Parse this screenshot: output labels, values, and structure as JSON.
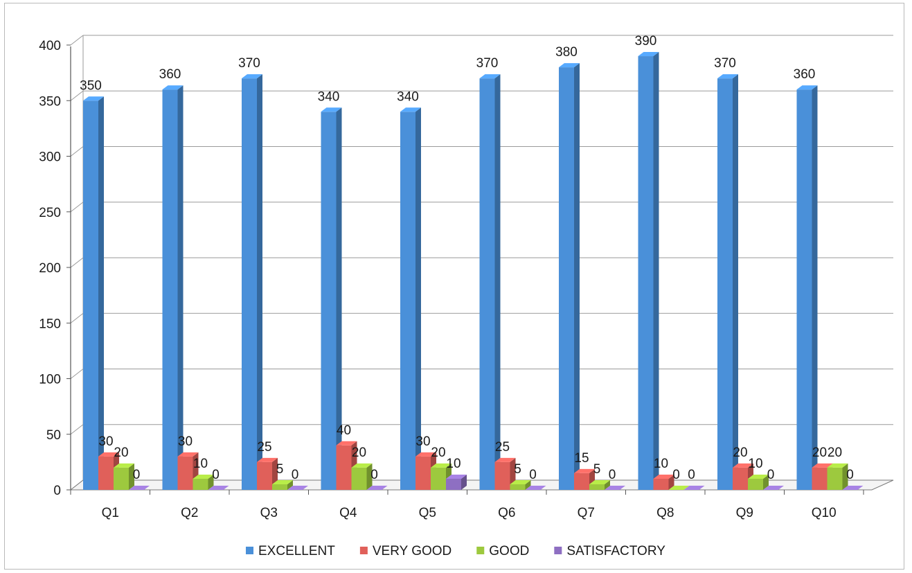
{
  "chart_data": {
    "type": "bar",
    "title": "",
    "xlabel": "",
    "ylabel": "",
    "ylim": [
      0,
      400
    ],
    "yticks": [
      "0",
      "50",
      "100",
      "150",
      "200",
      "250",
      "300",
      "350",
      "400"
    ],
    "categories": [
      "Q1",
      "Q2",
      "Q3",
      "Q4",
      "Q5",
      "Q6",
      "Q7",
      "Q8",
      "Q9",
      "Q10"
    ],
    "series": [
      {
        "name": "EXCELLENT",
        "color": "#4a90d9",
        "values": [
          350,
          360,
          370,
          340,
          340,
          370,
          380,
          390,
          370,
          360
        ]
      },
      {
        "name": "VERY GOOD",
        "color": "#e0605a",
        "values": [
          30,
          30,
          25,
          40,
          30,
          25,
          15,
          10,
          20,
          20
        ]
      },
      {
        "name": "GOOD",
        "color": "#9dc93e",
        "values": [
          20,
          10,
          5,
          20,
          20,
          5,
          5,
          0,
          10,
          20
        ]
      },
      {
        "name": "SATISFACTORY",
        "color": "#8e6fc2",
        "values": [
          0,
          0,
          0,
          0,
          10,
          0,
          0,
          0,
          0,
          0
        ]
      }
    ],
    "grid": true,
    "legend_position": "bottom",
    "style": "3d-clustered-column"
  }
}
